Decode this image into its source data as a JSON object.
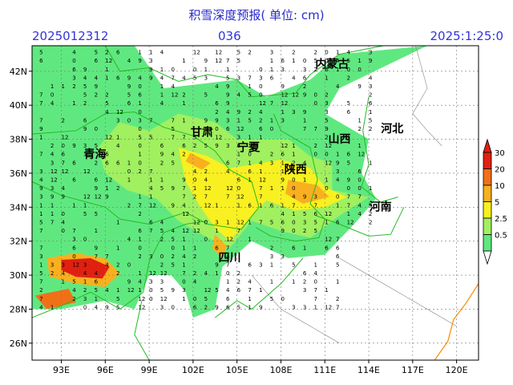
{
  "title": "积雪深度预报( 单位: cm)",
  "header": {
    "init_time": "2025012312",
    "lead_hours": "036",
    "valid_time": "2025:1:25:0"
  },
  "axes": {
    "lon_ticks": [
      "93E",
      "96E",
      "99E",
      "102E",
      "105E",
      "108E",
      "111E",
      "114E",
      "117E",
      "120E"
    ],
    "lat_ticks": [
      "42N",
      "40N",
      "38N",
      "36N",
      "34N",
      "32N",
      "30N",
      "28N",
      "26N"
    ]
  },
  "provinces": [
    {
      "name": "内蒙古",
      "lon": 111.5,
      "lat": 42.2
    },
    {
      "name": "甘肃",
      "lon": 102.6,
      "lat": 38.2
    },
    {
      "name": "宁夏",
      "lon": 105.8,
      "lat": 37.3
    },
    {
      "name": "山西",
      "lon": 112.0,
      "lat": 37.8
    },
    {
      "name": "河北",
      "lon": 115.6,
      "lat": 38.4
    },
    {
      "name": "青海",
      "lon": 95.3,
      "lat": 36.9
    },
    {
      "name": "陕西",
      "lon": 109.0,
      "lat": 36.0
    },
    {
      "name": "河南",
      "lon": 114.8,
      "lat": 33.8
    },
    {
      "name": "四川",
      "lon": 104.5,
      "lat": 30.8
    }
  ],
  "colorbar": {
    "labels": [
      "30",
      "20",
      "10",
      "5",
      "2.5",
      "0.5"
    ],
    "colors": [
      "#e02010",
      "#f07018",
      "#f8b020",
      "#f8f020",
      "#a0f060",
      "#60e880"
    ]
  },
  "map_colors": {
    "boundary": "#22bb22",
    "county": "#888888",
    "coast": "#ff8800",
    "grid": "#777777"
  }
}
